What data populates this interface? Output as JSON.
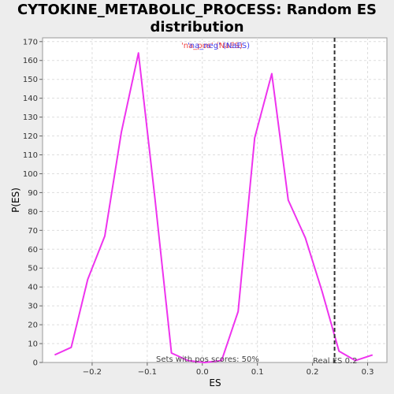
{
  "chart_data": {
    "type": "line",
    "title_line1": "CYTOKINE_METABOLIC_PROCESS: Random ES",
    "title_line2": "distribution",
    "xlabel": "ES",
    "ylabel": "P(ES)",
    "xlim": [
      -0.29,
      0.335
    ],
    "ylim": [
      0,
      172
    ],
    "x_ticks": [
      -0.2,
      -0.1,
      0.0,
      0.1,
      0.2,
      0.3
    ],
    "x_tick_labels": [
      "−0.2",
      "−0.1",
      "0.0",
      "0.1",
      "0.2",
      "0.3"
    ],
    "y_ticks": [
      0,
      10,
      20,
      30,
      40,
      50,
      60,
      70,
      80,
      90,
      100,
      110,
      120,
      130,
      140,
      150,
      160,
      170
    ],
    "grid": true,
    "series": [
      {
        "color": "#ee33ee",
        "x": [
          -0.268,
          -0.238,
          -0.208,
          -0.177,
          -0.147,
          -0.116,
          -0.086,
          -0.056,
          -0.026,
          0.004,
          0.035,
          0.065,
          0.095,
          0.126,
          0.156,
          0.187,
          0.217,
          0.248,
          0.278,
          0.309
        ],
        "y": [
          4,
          8,
          44,
          67,
          122,
          164,
          87,
          5,
          1,
          0,
          1,
          27,
          119,
          153,
          86,
          66,
          38,
          6,
          1,
          4
        ]
      }
    ],
    "legend": [
      {
        "text": "'na_pos' (NaES)",
        "color": "#ee4444"
      },
      {
        "text": "'na_neg' (NaES)",
        "color": "#4444ee"
      }
    ],
    "legend_placement": "top-center",
    "real_es": {
      "x": 0.24,
      "label": "Real ES 0.2"
    },
    "annotation": "Sets with pos scores: 50%"
  }
}
